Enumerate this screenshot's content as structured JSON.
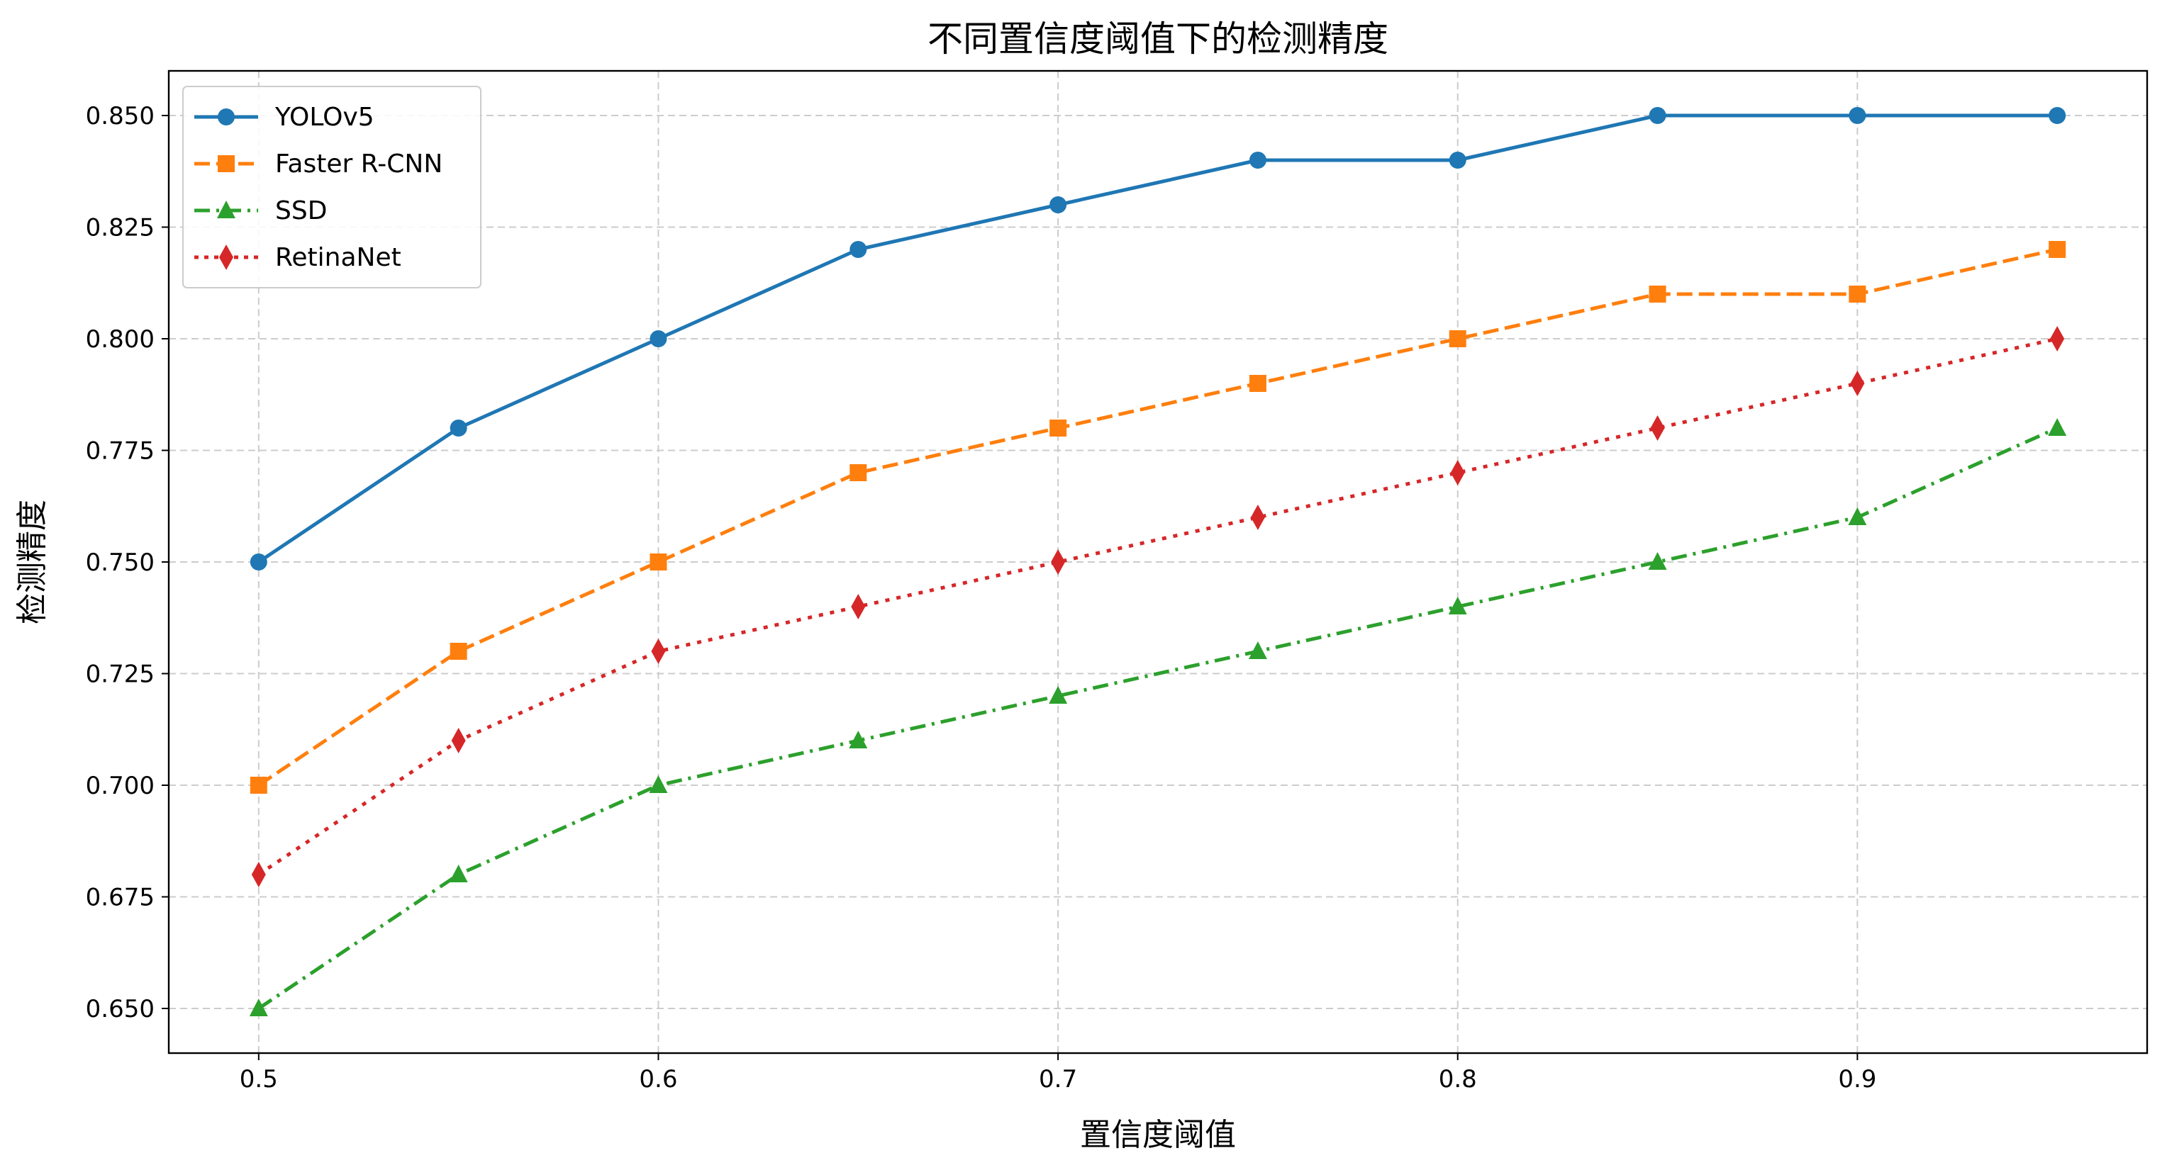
{
  "chart_data": {
    "type": "line",
    "title": "不同置信度阈值下的检测精度",
    "xlabel": "置信度阈值",
    "ylabel": "检测精度",
    "x": [
      0.5,
      0.55,
      0.6,
      0.65,
      0.7,
      0.75,
      0.8,
      0.85,
      0.9,
      0.95
    ],
    "xlim": [
      0.4775,
      0.9725
    ],
    "ylim": [
      0.64,
      0.86
    ],
    "xticks": [
      0.5,
      0.6,
      0.7,
      0.8,
      0.9
    ],
    "xtick_labels": [
      "0.5",
      "0.6",
      "0.7",
      "0.8",
      "0.9"
    ],
    "yticks": [
      0.65,
      0.675,
      0.7,
      0.725,
      0.75,
      0.775,
      0.8,
      0.825,
      0.85
    ],
    "ytick_labels": [
      "0.650",
      "0.675",
      "0.700",
      "0.725",
      "0.750",
      "0.775",
      "0.800",
      "0.825",
      "0.850"
    ],
    "grid": true,
    "legend_position": "upper-left",
    "series": [
      {
        "name": "YOLOv5",
        "values": [
          0.75,
          0.78,
          0.8,
          0.82,
          0.83,
          0.84,
          0.84,
          0.85,
          0.85,
          0.85
        ],
        "color": "#1f77b4",
        "line_style": "solid",
        "marker": "circle"
      },
      {
        "name": "Faster R-CNN",
        "values": [
          0.7,
          0.73,
          0.75,
          0.77,
          0.78,
          0.79,
          0.8,
          0.81,
          0.81,
          0.82
        ],
        "color": "#ff7f0e",
        "line_style": "dashed",
        "marker": "square"
      },
      {
        "name": "SSD",
        "values": [
          0.65,
          0.68,
          0.7,
          0.71,
          0.72,
          0.73,
          0.74,
          0.75,
          0.76,
          0.78
        ],
        "color": "#2ca02c",
        "line_style": "dashdot",
        "marker": "triangle"
      },
      {
        "name": "RetinaNet",
        "values": [
          0.68,
          0.71,
          0.73,
          0.74,
          0.75,
          0.76,
          0.77,
          0.78,
          0.79,
          0.8
        ],
        "color": "#d62728",
        "line_style": "dotted",
        "marker": "thin-diamond"
      }
    ]
  }
}
